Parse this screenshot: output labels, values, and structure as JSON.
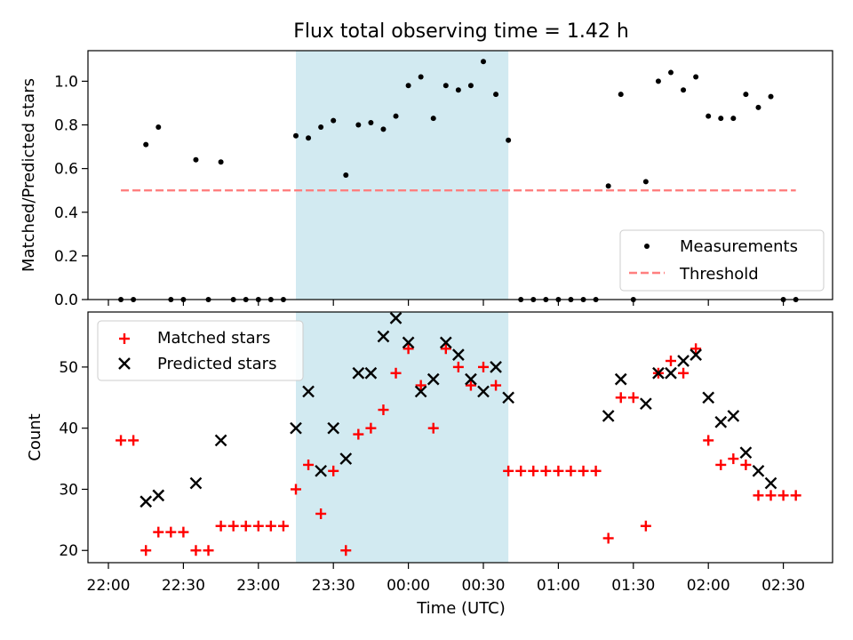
{
  "chart_data": [
    {
      "type": "scatter",
      "panel": "top",
      "title": "Flux total observing time = 1.42 h",
      "xlabel": "",
      "ylabel": "Matched/Predicted stars",
      "ylim": [
        0,
        1.14
      ],
      "yticks": [
        "0.0",
        "0.2",
        "0.4",
        "0.6",
        "0.8",
        "1.0"
      ],
      "shaded_interval": [
        "23:15",
        "00:40"
      ],
      "shade_color": "#add8e6",
      "legend_position": "lower-right",
      "series": [
        {
          "name": "Measurements",
          "marker": "dot",
          "color": "#000000",
          "points": [
            [
              "22:05",
              0.0
            ],
            [
              "22:10",
              0.0
            ],
            [
              "22:15",
              0.71
            ],
            [
              "22:20",
              0.79
            ],
            [
              "22:25",
              0.0
            ],
            [
              "22:30",
              0.0
            ],
            [
              "22:35",
              0.64
            ],
            [
              "22:40",
              0.0
            ],
            [
              "22:45",
              0.63
            ],
            [
              "22:50",
              0.0
            ],
            [
              "22:55",
              0.0
            ],
            [
              "23:00",
              0.0
            ],
            [
              "23:05",
              0.0
            ],
            [
              "23:10",
              0.0
            ],
            [
              "23:15",
              0.75
            ],
            [
              "23:20",
              0.74
            ],
            [
              "23:25",
              0.79
            ],
            [
              "23:30",
              0.82
            ],
            [
              "23:35",
              0.57
            ],
            [
              "23:40",
              0.8
            ],
            [
              "23:45",
              0.81
            ],
            [
              "23:50",
              0.78
            ],
            [
              "23:55",
              0.84
            ],
            [
              "00:00",
              0.98
            ],
            [
              "00:05",
              1.02
            ],
            [
              "00:10",
              0.83
            ],
            [
              "00:15",
              0.98
            ],
            [
              "00:20",
              0.96
            ],
            [
              "00:25",
              0.98
            ],
            [
              "00:30",
              1.09
            ],
            [
              "00:35",
              0.94
            ],
            [
              "00:40",
              0.73
            ],
            [
              "00:45",
              0.0
            ],
            [
              "00:50",
              0.0
            ],
            [
              "00:55",
              0.0
            ],
            [
              "01:00",
              0.0
            ],
            [
              "01:05",
              0.0
            ],
            [
              "01:10",
              0.0
            ],
            [
              "01:15",
              0.0
            ],
            [
              "01:20",
              0.52
            ],
            [
              "01:25",
              0.94
            ],
            [
              "01:30",
              0.0
            ],
            [
              "01:35",
              0.54
            ],
            [
              "01:40",
              1.0
            ],
            [
              "01:45",
              1.04
            ],
            [
              "01:50",
              0.96
            ],
            [
              "01:55",
              1.02
            ],
            [
              "02:00",
              0.84
            ],
            [
              "02:05",
              0.83
            ],
            [
              "02:10",
              0.83
            ],
            [
              "02:15",
              0.94
            ],
            [
              "02:20",
              0.88
            ],
            [
              "02:25",
              0.93
            ],
            [
              "02:30",
              0.0
            ],
            [
              "02:35",
              0.0
            ]
          ]
        },
        {
          "name": "Threshold",
          "marker": "dashed-line",
          "color": "#ff7f7f",
          "points": [
            [
              "22:05",
              0.5
            ],
            [
              "02:35",
              0.5
            ]
          ]
        }
      ]
    },
    {
      "type": "scatter",
      "panel": "bottom",
      "xlabel": "Time (UTC)",
      "ylabel": "Count",
      "ylim": [
        18,
        59
      ],
      "yticks": [
        "20",
        "30",
        "40",
        "50"
      ],
      "xticks": [
        "22:00",
        "22:30",
        "23:00",
        "23:30",
        "00:00",
        "00:30",
        "01:00",
        "01:30",
        "02:00",
        "02:30"
      ],
      "shaded_interval": [
        "23:15",
        "00:40"
      ],
      "shade_color": "#add8e6",
      "legend_position": "upper-left",
      "series": [
        {
          "name": "Matched stars",
          "marker": "plus",
          "color": "#ff0000",
          "points": [
            [
              "22:05",
              38
            ],
            [
              "22:10",
              38
            ],
            [
              "22:15",
              20
            ],
            [
              "22:20",
              23
            ],
            [
              "22:25",
              23
            ],
            [
              "22:30",
              23
            ],
            [
              "22:35",
              20
            ],
            [
              "22:40",
              20
            ],
            [
              "22:45",
              24
            ],
            [
              "22:50",
              24
            ],
            [
              "22:55",
              24
            ],
            [
              "23:00",
              24
            ],
            [
              "23:05",
              24
            ],
            [
              "23:10",
              24
            ],
            [
              "23:15",
              30
            ],
            [
              "23:20",
              34
            ],
            [
              "23:25",
              26
            ],
            [
              "23:30",
              33
            ],
            [
              "23:35",
              20
            ],
            [
              "23:40",
              39
            ],
            [
              "23:45",
              40
            ],
            [
              "23:50",
              43
            ],
            [
              "23:55",
              49
            ],
            [
              "00:00",
              53
            ],
            [
              "00:05",
              47
            ],
            [
              "00:10",
              40
            ],
            [
              "00:15",
              53
            ],
            [
              "00:20",
              50
            ],
            [
              "00:25",
              47
            ],
            [
              "00:30",
              50
            ],
            [
              "00:35",
              47
            ],
            [
              "00:40",
              33
            ],
            [
              "00:45",
              33
            ],
            [
              "00:50",
              33
            ],
            [
              "00:55",
              33
            ],
            [
              "01:00",
              33
            ],
            [
              "01:05",
              33
            ],
            [
              "01:10",
              33
            ],
            [
              "01:15",
              33
            ],
            [
              "01:20",
              22
            ],
            [
              "01:25",
              45
            ],
            [
              "01:30",
              45
            ],
            [
              "01:35",
              24
            ],
            [
              "01:40",
              49
            ],
            [
              "01:45",
              51
            ],
            [
              "01:50",
              49
            ],
            [
              "01:55",
              53
            ],
            [
              "02:00",
              38
            ],
            [
              "02:05",
              34
            ],
            [
              "02:10",
              35
            ],
            [
              "02:15",
              34
            ],
            [
              "02:20",
              29
            ],
            [
              "02:25",
              29
            ],
            [
              "02:30",
              29
            ],
            [
              "02:35",
              29
            ]
          ]
        },
        {
          "name": "Predicted stars",
          "marker": "x",
          "color": "#000000",
          "points": [
            [
              "22:15",
              28
            ],
            [
              "22:20",
              29
            ],
            [
              "22:35",
              31
            ],
            [
              "22:45",
              38
            ],
            [
              "23:15",
              40
            ],
            [
              "23:20",
              46
            ],
            [
              "23:25",
              33
            ],
            [
              "23:30",
              40
            ],
            [
              "23:35",
              35
            ],
            [
              "23:40",
              49
            ],
            [
              "23:45",
              49
            ],
            [
              "23:50",
              55
            ],
            [
              "23:55",
              58
            ],
            [
              "00:00",
              54
            ],
            [
              "00:05",
              46
            ],
            [
              "00:10",
              48
            ],
            [
              "00:15",
              54
            ],
            [
              "00:20",
              52
            ],
            [
              "00:25",
              48
            ],
            [
              "00:30",
              46
            ],
            [
              "00:35",
              50
            ],
            [
              "00:40",
              45
            ],
            [
              "01:20",
              42
            ],
            [
              "01:25",
              48
            ],
            [
              "01:35",
              44
            ],
            [
              "01:40",
              49
            ],
            [
              "01:45",
              49
            ],
            [
              "01:50",
              51
            ],
            [
              "01:55",
              52
            ],
            [
              "02:00",
              45
            ],
            [
              "02:05",
              41
            ],
            [
              "02:10",
              42
            ],
            [
              "02:15",
              36
            ],
            [
              "02:20",
              33
            ],
            [
              "02:25",
              31
            ]
          ]
        }
      ]
    }
  ]
}
